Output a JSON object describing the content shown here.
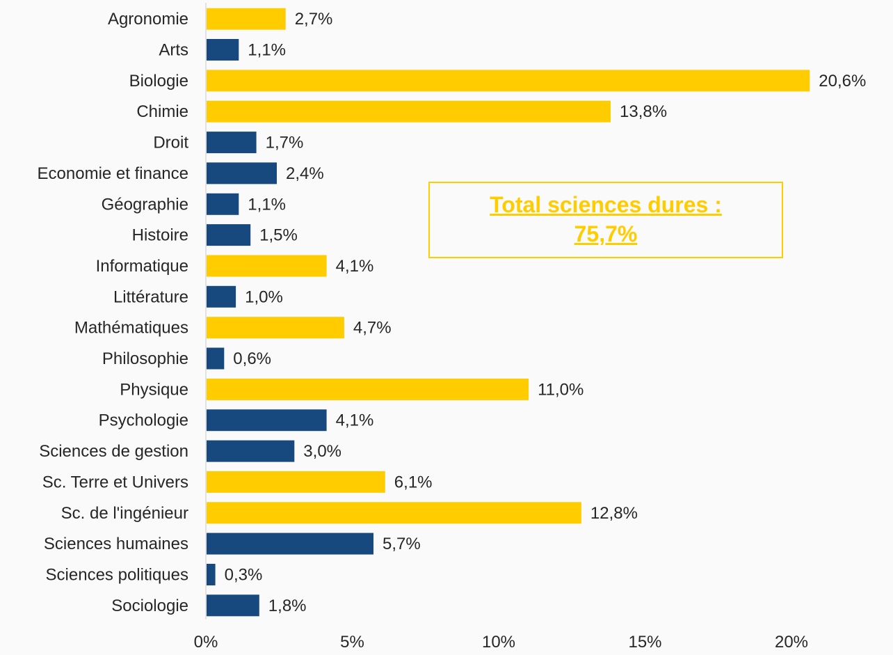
{
  "chart_data": {
    "type": "bar",
    "orientation": "horizontal",
    "categories": [
      "Agronomie",
      "Arts",
      "Biologie",
      "Chimie",
      "Droit",
      "Economie et finance",
      "Géographie",
      "Histoire",
      "Informatique",
      "Littérature",
      "Mathématiques",
      "Philosophie",
      "Physique",
      "Psychologie",
      "Sciences de gestion",
      "Sc. Terre et Univers",
      "Sc. de l'ingénieur",
      "Sciences humaines",
      "Sciences politiques",
      "Sociologie"
    ],
    "values": [
      2.7,
      1.1,
      20.6,
      13.8,
      1.7,
      2.4,
      1.1,
      1.5,
      4.1,
      1.0,
      4.7,
      0.6,
      11.0,
      4.1,
      3.0,
      6.1,
      12.8,
      5.7,
      0.3,
      1.8
    ],
    "value_labels": [
      "2,7%",
      "1,1%",
      "20,6%",
      "13,8%",
      "1,7%",
      "2,4%",
      "1,1%",
      "1,5%",
      "4,1%",
      "1,0%",
      "4,7%",
      "0,6%",
      "11,0%",
      "4,1%",
      "3,0%",
      "6,1%",
      "12,8%",
      "5,7%",
      "0,3%",
      "1,8%"
    ],
    "groups": [
      "hard",
      "soft",
      "hard",
      "hard",
      "soft",
      "soft",
      "soft",
      "soft",
      "hard",
      "soft",
      "hard",
      "soft",
      "hard",
      "soft",
      "soft",
      "hard",
      "hard",
      "soft",
      "soft",
      "soft"
    ],
    "group_colors": {
      "hard": "#ffcc00",
      "soft": "#17497e"
    },
    "xlim": [
      0,
      20
    ],
    "x_ticks": [
      0,
      5,
      10,
      15,
      20
    ],
    "x_tick_labels": [
      "0%",
      "5%",
      "10%",
      "15%",
      "20%"
    ],
    "grid": false,
    "title": "",
    "xlabel": "",
    "ylabel": ""
  },
  "callout": {
    "line1": "Total sciences dures :",
    "line2": "75,7%",
    "color": "#ffcc00"
  }
}
